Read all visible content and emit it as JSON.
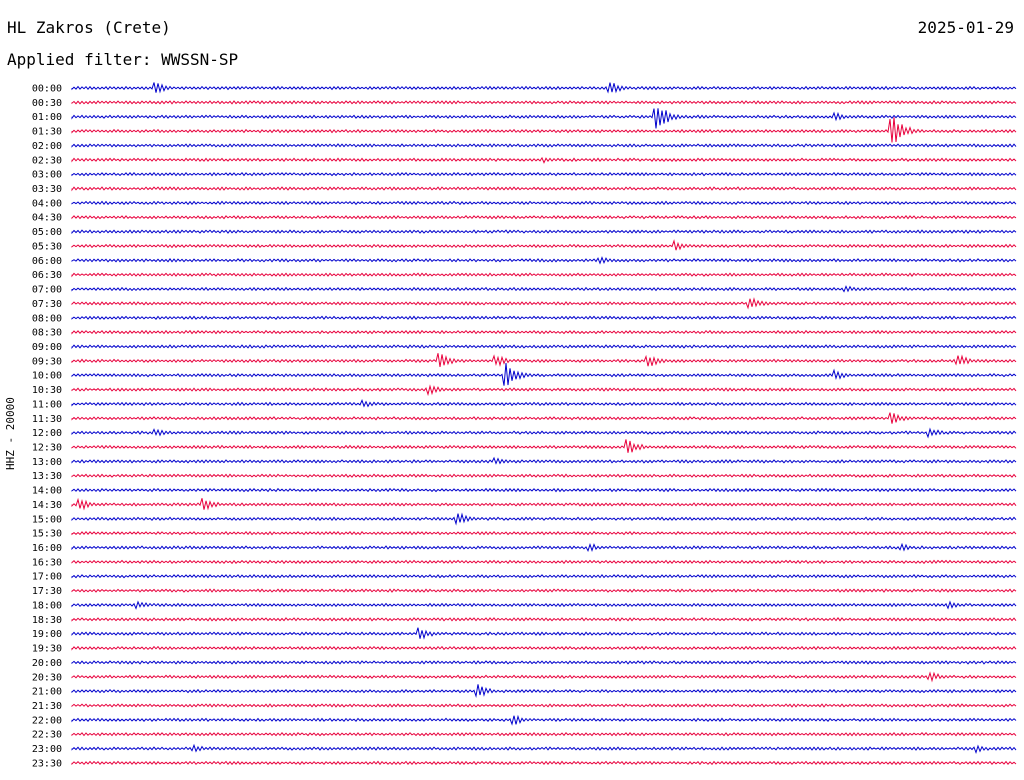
{
  "header": {
    "station": "HL Zakros (Crete)",
    "date": "2025-01-29",
    "filter": "Applied filter: WWSSN-SP"
  },
  "chart_data": {
    "type": "line",
    "ylabel": "HHZ - 20000",
    "colors": [
      "#0000cc",
      "#e8003c"
    ],
    "row_labels": [
      "00:00",
      "00:30",
      "01:00",
      "01:30",
      "02:00",
      "02:30",
      "03:00",
      "03:30",
      "04:00",
      "04:30",
      "05:00",
      "05:30",
      "06:00",
      "06:30",
      "07:00",
      "07:30",
      "08:00",
      "08:30",
      "09:00",
      "09:30",
      "10:00",
      "10:30",
      "11:00",
      "11:30",
      "12:00",
      "12:30",
      "13:00",
      "13:30",
      "14:00",
      "14:30",
      "15:00",
      "15:30",
      "16:00",
      "16:30",
      "17:00",
      "17:30",
      "18:00",
      "18:30",
      "19:00",
      "19:30",
      "20:00",
      "20:30",
      "21:00",
      "21:30",
      "22:00",
      "22:30",
      "23:00",
      "23:30"
    ],
    "events": [
      {
        "row": 0,
        "t": 0.09,
        "amp": 6
      },
      {
        "row": 0,
        "t": 0.57,
        "amp": 7
      },
      {
        "row": 2,
        "t": 0.62,
        "amp": 16
      },
      {
        "row": 2,
        "t": 0.81,
        "amp": 4
      },
      {
        "row": 3,
        "t": 0.87,
        "amp": 17
      },
      {
        "row": 5,
        "t": 0.5,
        "amp": 3
      },
      {
        "row": 11,
        "t": 0.64,
        "amp": 5
      },
      {
        "row": 12,
        "t": 0.56,
        "amp": 4
      },
      {
        "row": 14,
        "t": 0.82,
        "amp": 4
      },
      {
        "row": 15,
        "t": 0.72,
        "amp": 6
      },
      {
        "row": 19,
        "t": 0.39,
        "amp": 8
      },
      {
        "row": 19,
        "t": 0.45,
        "amp": 6
      },
      {
        "row": 19,
        "t": 0.61,
        "amp": 8
      },
      {
        "row": 19,
        "t": 0.94,
        "amp": 6
      },
      {
        "row": 20,
        "t": 0.46,
        "amp": 14
      },
      {
        "row": 20,
        "t": 0.81,
        "amp": 5
      },
      {
        "row": 21,
        "t": 0.38,
        "amp": 5
      },
      {
        "row": 22,
        "t": 0.31,
        "amp": 4
      },
      {
        "row": 23,
        "t": 0.87,
        "amp": 6
      },
      {
        "row": 24,
        "t": 0.09,
        "amp": 4
      },
      {
        "row": 24,
        "t": 0.91,
        "amp": 5
      },
      {
        "row": 25,
        "t": 0.59,
        "amp": 8
      },
      {
        "row": 26,
        "t": 0.45,
        "amp": 4
      },
      {
        "row": 29,
        "t": 0.01,
        "amp": 6
      },
      {
        "row": 29,
        "t": 0.14,
        "amp": 7
      },
      {
        "row": 30,
        "t": 0.41,
        "amp": 6
      },
      {
        "row": 32,
        "t": 0.55,
        "amp": 4
      },
      {
        "row": 32,
        "t": 0.88,
        "amp": 4
      },
      {
        "row": 36,
        "t": 0.07,
        "amp": 4
      },
      {
        "row": 36,
        "t": 0.93,
        "amp": 4
      },
      {
        "row": 38,
        "t": 0.37,
        "amp": 6
      },
      {
        "row": 41,
        "t": 0.91,
        "amp": 5
      },
      {
        "row": 42,
        "t": 0.43,
        "amp": 7
      },
      {
        "row": 44,
        "t": 0.47,
        "amp": 5
      },
      {
        "row": 46,
        "t": 0.13,
        "amp": 4
      },
      {
        "row": 46,
        "t": 0.96,
        "amp": 4
      }
    ]
  }
}
